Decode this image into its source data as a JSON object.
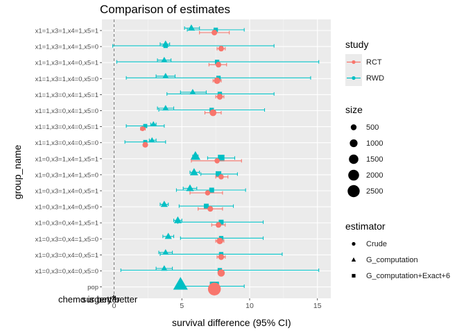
{
  "chart_data": {
    "type": "forest",
    "title": "Comparison of estimates",
    "xlabel": "survival difference (95% CI)",
    "ylabel": "group_name",
    "xlim": [
      -1.2,
      16
    ],
    "xticks": [
      0,
      5,
      10,
      15
    ],
    "reference_line_x": 0,
    "annotations": [
      "chemo is better",
      "surgery better"
    ],
    "categories": [
      "x1=1,x3=1,x4=1,x5=1",
      "x1=1,x3=1,x4=1,x5=0",
      "x1=1,x3=1,x4=0,x5=1",
      "x1=1,x3=1,x4=0,x5=0",
      "x1=1,x3=0,x4=1,x5=1",
      "x1=1,x3=0,x4=1,x5=0",
      "x1=1,x3=0,x4=0,x5=1",
      "x1=1,x3=0,x4=0,x5=0",
      "x1=0,x3=1,x4=1,x5=1",
      "x1=0,x3=1,x4=1,x5=0",
      "x1=0,x3=1,x4=0,x5=1",
      "x1=0,x3=1,x4=0,x5=0",
      "x1=0,x3=0,x4=1,x5=1",
      "x1=0,x3=0,x4=1,x5=0",
      "x1=0,x3=0,x4=0,x5=1",
      "x1=0,x3=0,x4=0,x5=0",
      "pop"
    ],
    "series": [
      {
        "group": "x1=1,x3=1,x4=1,x5=1",
        "study": "RWD",
        "estimator": "G_computation",
        "est": 5.7,
        "lo": 5.2,
        "hi": 6.3,
        "size": 300
      },
      {
        "group": "x1=1,x3=1,x4=1,x5=1",
        "study": "RWD",
        "estimator": "G_computation+Exact+6",
        "est": 7.5,
        "lo": 5.4,
        "hi": 9.6,
        "size": 200
      },
      {
        "group": "x1=1,x3=1,x4=1,x5=1",
        "study": "RCT",
        "estimator": "Crude",
        "est": 7.4,
        "lo": 6.3,
        "hi": 8.5,
        "size": 200
      },
      {
        "group": "x1=1,x3=1,x4=1,x5=0",
        "study": "RWD",
        "estimator": "G_computation",
        "est": 3.8,
        "lo": 3.4,
        "hi": 4.1,
        "size": 300
      },
      {
        "group": "x1=1,x3=1,x4=1,x5=0",
        "study": "RWD",
        "estimator": "G_computation+Exact+6",
        "est": 3.8,
        "lo": -0.1,
        "hi": 11.8,
        "size": 200
      },
      {
        "group": "x1=1,x3=1,x4=1,x5=0",
        "study": "RCT",
        "estimator": "Crude",
        "est": 7.9,
        "lo": 7.6,
        "hi": 8.2,
        "size": 200
      },
      {
        "group": "x1=1,x3=1,x4=0,x5=1",
        "study": "RWD",
        "estimator": "G_computation",
        "est": 3.7,
        "lo": 3.2,
        "hi": 4.2,
        "size": 200
      },
      {
        "group": "x1=1,x3=1,x4=0,x5=1",
        "study": "RWD",
        "estimator": "G_computation+Exact+6",
        "est": 7.6,
        "lo": 0.2,
        "hi": 15.1,
        "size": 200
      },
      {
        "group": "x1=1,x3=1,x4=0,x5=1",
        "study": "RCT",
        "estimator": "Crude",
        "est": 7.7,
        "lo": 7.0,
        "hi": 8.3,
        "size": 200
      },
      {
        "group": "x1=1,x3=1,x4=0,x5=0",
        "study": "RWD",
        "estimator": "G_computation",
        "est": 3.8,
        "lo": 3.1,
        "hi": 4.5,
        "size": 200
      },
      {
        "group": "x1=1,x3=1,x4=0,x5=0",
        "study": "RWD",
        "estimator": "G_computation+Exact+6",
        "est": 7.7,
        "lo": 0.9,
        "hi": 14.5,
        "size": 200
      },
      {
        "group": "x1=1,x3=1,x4=0,x5=0",
        "study": "RCT",
        "estimator": "Crude",
        "est": 7.6,
        "lo": 7.3,
        "hi": 7.9,
        "size": 350
      },
      {
        "group": "x1=1,x3=0,x4=1,x5=1",
        "study": "RWD",
        "estimator": "G_computation",
        "est": 5.8,
        "lo": 4.9,
        "hi": 6.8,
        "size": 200
      },
      {
        "group": "x1=1,x3=0,x4=1,x5=1",
        "study": "RWD",
        "estimator": "G_computation+Exact+6",
        "est": 7.8,
        "lo": 3.9,
        "hi": 11.8,
        "size": 200
      },
      {
        "group": "x1=1,x3=0,x4=1,x5=1",
        "study": "RCT",
        "estimator": "Crude",
        "est": 7.8,
        "lo": 7.5,
        "hi": 8.1,
        "size": 250
      },
      {
        "group": "x1=1,x3=0,x4=1,x5=0",
        "study": "RWD",
        "estimator": "G_computation",
        "est": 3.8,
        "lo": 3.2,
        "hi": 4.4,
        "size": 200
      },
      {
        "group": "x1=1,x3=0,x4=1,x5=0",
        "study": "RWD",
        "estimator": "G_computation+Exact+6",
        "est": 7.2,
        "lo": 3.3,
        "hi": 11.1,
        "size": 200
      },
      {
        "group": "x1=1,x3=0,x4=1,x5=0",
        "study": "RCT",
        "estimator": "Crude",
        "est": 7.3,
        "lo": 6.7,
        "hi": 7.9,
        "size": 400
      },
      {
        "group": "x1=1,x3=0,x4=0,x5=1",
        "study": "RWD",
        "estimator": "G_computation",
        "est": 2.9,
        "lo": 2.7,
        "hi": 3.1,
        "size": 150
      },
      {
        "group": "x1=1,x3=0,x4=0,x5=1",
        "study": "RWD",
        "estimator": "G_computation+Exact+6",
        "est": 2.3,
        "lo": 0.9,
        "hi": 3.7,
        "size": 150
      },
      {
        "group": "x1=1,x3=0,x4=0,x5=1",
        "study": "RCT",
        "estimator": "Crude",
        "est": 2.1,
        "lo": 1.95,
        "hi": 2.3,
        "size": 100
      },
      {
        "group": "x1=1,x3=0,x4=0,x5=0",
        "study": "RWD",
        "estimator": "G_computation",
        "est": 2.8,
        "lo": 2.6,
        "hi": 3.1,
        "size": 150
      },
      {
        "group": "x1=1,x3=0,x4=0,x5=0",
        "study": "RWD",
        "estimator": "G_computation+Exact+6",
        "est": 2.3,
        "lo": 0.8,
        "hi": 3.8,
        "size": 150
      },
      {
        "group": "x1=1,x3=0,x4=0,x5=0",
        "study": "RCT",
        "estimator": "Crude",
        "est": 2.3,
        "lo": 2.3,
        "hi": 2.3,
        "size": 200
      },
      {
        "group": "x1=0,x3=1,x4=1,x5=1",
        "study": "RWD",
        "estimator": "G_computation",
        "est": 6.0,
        "lo": 5.8,
        "hi": 6.2,
        "size": 900
      },
      {
        "group": "x1=0,x3=1,x4=1,x5=1",
        "study": "RWD",
        "estimator": "G_computation+Exact+6",
        "est": 7.9,
        "lo": 6.9,
        "hi": 8.9,
        "size": 800
      },
      {
        "group": "x1=0,x3=1,x4=1,x5=1",
        "study": "RCT",
        "estimator": "Crude",
        "est": 7.6,
        "lo": 5.7,
        "hi": 9.4,
        "size": 150
      },
      {
        "group": "x1=0,x3=1,x4=1,x5=0",
        "study": "RWD",
        "estimator": "G_computation",
        "est": 5.9,
        "lo": 5.6,
        "hi": 6.3,
        "size": 500
      },
      {
        "group": "x1=0,x3=1,x4=1,x5=0",
        "study": "RWD",
        "estimator": "G_computation+Exact+6",
        "est": 7.7,
        "lo": 6.4,
        "hi": 9.1,
        "size": 500
      },
      {
        "group": "x1=0,x3=1,x4=1,x5=0",
        "study": "RCT",
        "estimator": "Crude",
        "est": 7.9,
        "lo": 7.5,
        "hi": 8.4,
        "size": 150
      },
      {
        "group": "x1=0,x3=1,x4=0,x5=1",
        "study": "RWD",
        "estimator": "G_computation",
        "est": 5.6,
        "lo": 5.1,
        "hi": 6.1,
        "size": 400
      },
      {
        "group": "x1=0,x3=1,x4=0,x5=1",
        "study": "RWD",
        "estimator": "G_computation+Exact+6",
        "est": 7.2,
        "lo": 4.6,
        "hi": 9.7,
        "size": 300
      },
      {
        "group": "x1=0,x3=1,x4=0,x5=1",
        "study": "RCT",
        "estimator": "Crude",
        "est": 6.9,
        "lo": 5.6,
        "hi": 8.0,
        "size": 150
      },
      {
        "group": "x1=0,x3=1,x4=0,x5=0",
        "study": "RWD",
        "estimator": "G_computation",
        "est": 3.7,
        "lo": 3.4,
        "hi": 4.0,
        "size": 300
      },
      {
        "group": "x1=0,x3=1,x4=0,x5=0",
        "study": "RWD",
        "estimator": "G_computation+Exact+6",
        "est": 6.8,
        "lo": 4.8,
        "hi": 8.8,
        "size": 300
      },
      {
        "group": "x1=0,x3=1,x4=0,x5=0",
        "study": "RCT",
        "estimator": "Crude",
        "est": 7.1,
        "lo": 6.2,
        "hi": 8.0,
        "size": 200
      },
      {
        "group": "x1=0,x3=0,x4=1,x5=1",
        "study": "RWD",
        "estimator": "G_computation",
        "est": 4.7,
        "lo": 4.4,
        "hi": 5.0,
        "size": 400
      },
      {
        "group": "x1=0,x3=0,x4=1,x5=1",
        "study": "RWD",
        "estimator": "G_computation+Exact+6",
        "est": 7.9,
        "lo": 4.7,
        "hi": 11.0,
        "size": 300
      },
      {
        "group": "x1=0,x3=0,x4=1,x5=1",
        "study": "RCT",
        "estimator": "Crude",
        "est": 7.7,
        "lo": 7.2,
        "hi": 8.2,
        "size": 200
      },
      {
        "group": "x1=0,x3=0,x4=1,x5=0",
        "study": "RWD",
        "estimator": "G_computation",
        "est": 4.0,
        "lo": 3.6,
        "hi": 4.4,
        "size": 300
      },
      {
        "group": "x1=0,x3=0,x4=1,x5=0",
        "study": "RWD",
        "estimator": "G_computation+Exact+6",
        "est": 7.9,
        "lo": 4.9,
        "hi": 11.0,
        "size": 200
      },
      {
        "group": "x1=0,x3=0,x4=1,x5=0",
        "study": "RCT",
        "estimator": "Crude",
        "est": 7.8,
        "lo": 7.5,
        "hi": 8.1,
        "size": 350
      },
      {
        "group": "x1=0,x3=0,x4=0,x5=1",
        "study": "RWD",
        "estimator": "G_computation",
        "est": 3.8,
        "lo": 3.3,
        "hi": 4.3,
        "size": 200
      },
      {
        "group": "x1=0,x3=0,x4=0,x5=1",
        "study": "RWD",
        "estimator": "G_computation+Exact+6",
        "est": 7.9,
        "lo": 3.4,
        "hi": 12.4,
        "size": 200
      },
      {
        "group": "x1=0,x3=0,x4=0,x5=1",
        "study": "RCT",
        "estimator": "Crude",
        "est": 7.9,
        "lo": 7.6,
        "hi": 8.2,
        "size": 250
      },
      {
        "group": "x1=0,x3=0,x4=0,x5=0",
        "study": "RWD",
        "estimator": "G_computation",
        "est": 3.7,
        "lo": 3.1,
        "hi": 4.3,
        "size": 200
      },
      {
        "group": "x1=0,x3=0,x4=0,x5=0",
        "study": "RWD",
        "estimator": "G_computation+Exact+6",
        "est": 7.8,
        "lo": 0.5,
        "hi": 15.1,
        "size": 200
      },
      {
        "group": "x1=0,x3=0,x4=0,x5=0",
        "study": "RCT",
        "estimator": "Crude",
        "est": 7.9,
        "lo": 7.9,
        "hi": 7.9,
        "size": 500
      },
      {
        "group": "pop",
        "study": "RWD",
        "estimator": "G_computation",
        "est": 4.9,
        "lo": 4.9,
        "hi": 4.9,
        "size": 2500
      },
      {
        "group": "pop",
        "study": "RWD",
        "estimator": "G_computation+Exact+6",
        "est": 7.4,
        "lo": 5.0,
        "hi": 9.6,
        "size": 2000
      },
      {
        "group": "pop",
        "study": "RCT",
        "estimator": "Crude",
        "est": 7.4,
        "lo": 7.4,
        "hi": 7.4,
        "size": 2500
      }
    ],
    "legend": {
      "study": {
        "title": "study",
        "items": [
          "RCT",
          "RWD"
        ]
      },
      "size": {
        "title": "size",
        "items": [
          500,
          1000,
          1500,
          2000,
          2500
        ]
      },
      "estimator": {
        "title": "estimator",
        "items": [
          "Crude",
          "G_computation",
          "G_computation+Exact+6"
        ]
      }
    },
    "legend_position": "right",
    "grid": true,
    "colors": {
      "RCT": "#F8766D",
      "RWD": "#00BFC4",
      "panel": "#EBEBEB"
    }
  }
}
